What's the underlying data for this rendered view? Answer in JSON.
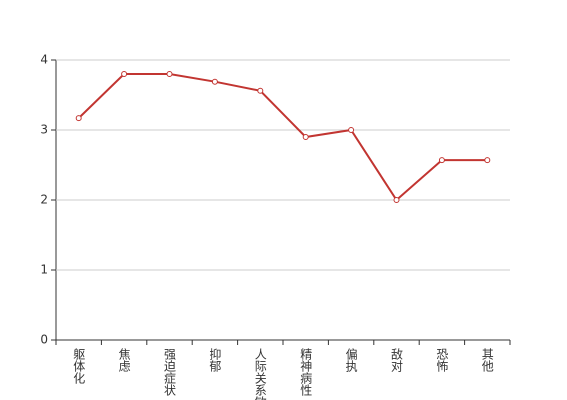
{
  "chart_data": {
    "type": "line",
    "categories": [
      "躯体化",
      "焦虑",
      "强迫症状",
      "抑郁",
      "人际关系敏感",
      "精神病性",
      "偏执",
      "敌对",
      "恐怖",
      "其他"
    ],
    "values": [
      3.17,
      3.8,
      3.8,
      3.69,
      3.56,
      2.9,
      3.0,
      2.0,
      2.57,
      2.57
    ],
    "color": "#c23531",
    "ylim": [
      0,
      4
    ],
    "yticks": [
      0,
      1,
      2,
      3,
      4
    ],
    "grid": true
  }
}
